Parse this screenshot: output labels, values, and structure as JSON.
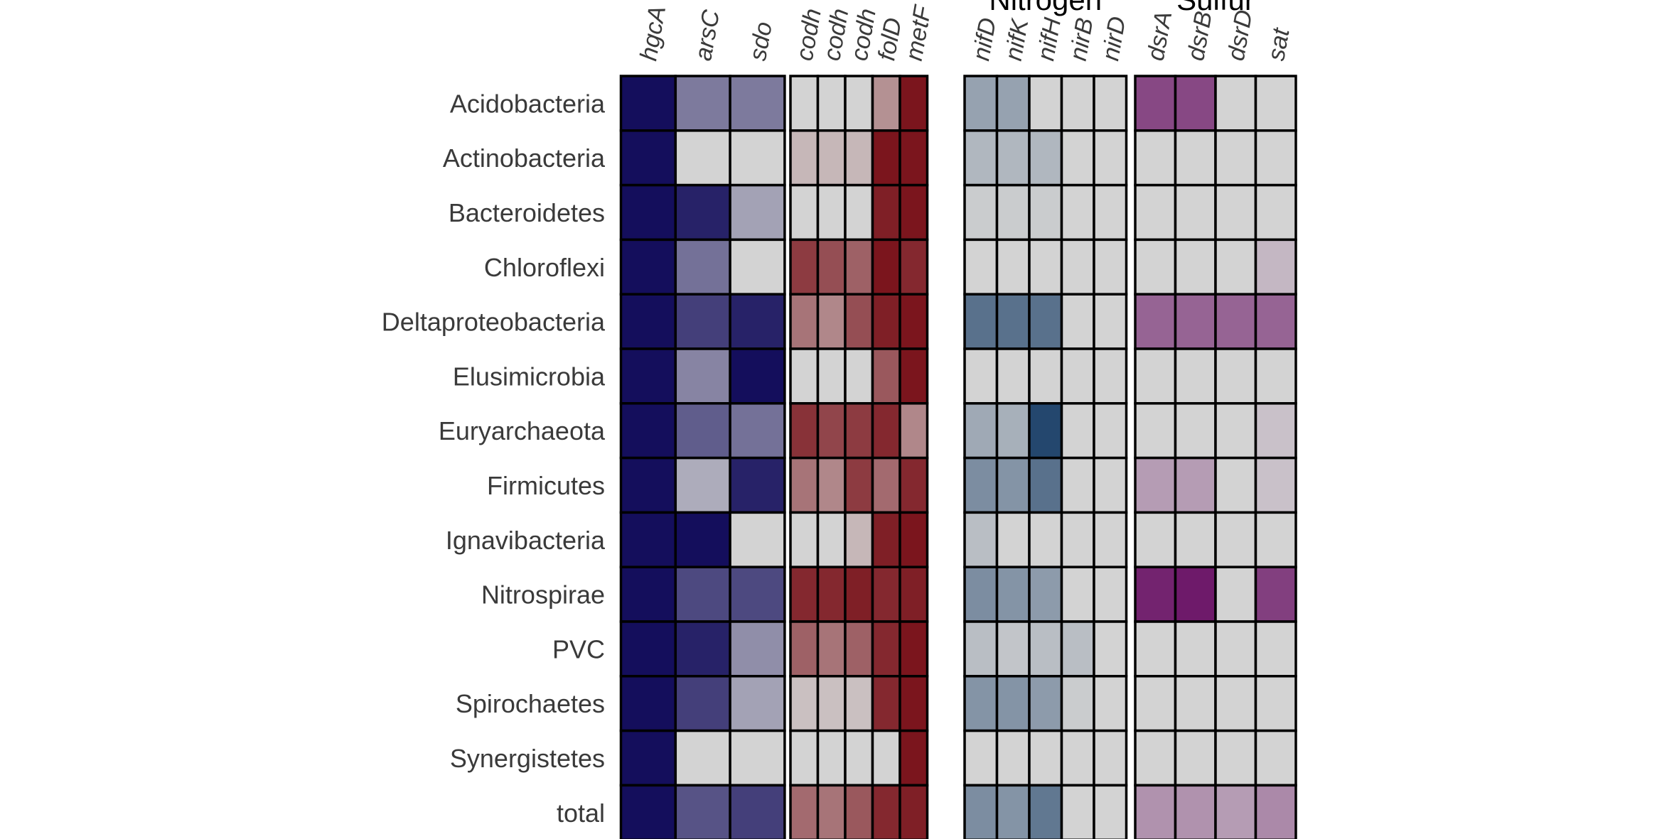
{
  "chart_data": {
    "type": "heatmap",
    "rows": [
      "Acidobacteria",
      "Actinobacteria",
      "Bacteroidetes",
      "Chloroflexi",
      "Deltaproteobacteria",
      "Elusimicrobia",
      "Euryarchaeota",
      "Firmicutes",
      "Ignavibacteria",
      "Nitrospirae",
      "PVC",
      "Spirochaetes",
      "Synergistetes",
      "total"
    ],
    "empty_color": "#d3d3d3",
    "groups": [
      {
        "label": "",
        "color": "#140e5c",
        "columns": [
          "hgcA",
          "arsC",
          "sdo"
        ],
        "values": [
          [
            1.0,
            0.45,
            0.45
          ],
          [
            1.0,
            0.0,
            0.0
          ],
          [
            1.0,
            0.9,
            0.25
          ],
          [
            1.0,
            0.5,
            0.0
          ],
          [
            1.0,
            0.75,
            0.9
          ],
          [
            1.0,
            0.4,
            1.0
          ],
          [
            1.0,
            0.6,
            0.5
          ],
          [
            1.0,
            0.2,
            0.9
          ],
          [
            1.0,
            1.0,
            0.0
          ],
          [
            1.0,
            0.7,
            0.7
          ],
          [
            1.0,
            0.9,
            0.35
          ],
          [
            1.0,
            0.75,
            0.25
          ],
          [
            1.0,
            0.0,
            0.0
          ],
          [
            1.0,
            0.65,
            0.75
          ]
        ]
      },
      {
        "label": "",
        "color": "#7b151d",
        "columns": [
          "codh",
          "codh",
          "codh",
          "folD",
          "metF"
        ],
        "values": [
          [
            0.0,
            0.0,
            0.0,
            0.35,
            1.0
          ],
          [
            0.15,
            0.15,
            0.15,
            1.0,
            1.0
          ],
          [
            0.0,
            0.0,
            0.0,
            0.95,
            1.0
          ],
          [
            0.8,
            0.7,
            0.6,
            1.0,
            0.9
          ],
          [
            0.5,
            0.4,
            0.7,
            0.95,
            1.0
          ],
          [
            0.0,
            0.0,
            0.0,
            0.65,
            1.0
          ],
          [
            0.85,
            0.75,
            0.8,
            0.9,
            0.4
          ],
          [
            0.5,
            0.4,
            0.8,
            0.55,
            0.9
          ],
          [
            0.0,
            0.0,
            0.15,
            0.95,
            1.0
          ],
          [
            0.9,
            0.9,
            0.95,
            0.9,
            0.95
          ],
          [
            0.6,
            0.5,
            0.6,
            0.9,
            1.0
          ],
          [
            0.1,
            0.1,
            0.1,
            0.9,
            1.0
          ],
          [
            0.0,
            0.0,
            0.0,
            0.0,
            1.0
          ],
          [
            0.55,
            0.5,
            0.65,
            0.9,
            0.95
          ]
        ]
      },
      {
        "label": "Nitrogen",
        "color": "#24476e",
        "columns": [
          "nifD",
          "nifK",
          "nifH",
          "nirB",
          "nirD"
        ],
        "values": [
          [
            0.35,
            0.35,
            0.0,
            0.0,
            0.0
          ],
          [
            0.2,
            0.2,
            0.2,
            0.0,
            0.0
          ],
          [
            0.05,
            0.05,
            0.05,
            0.0,
            0.0
          ],
          [
            0.0,
            0.0,
            0.0,
            0.0,
            0.0
          ],
          [
            0.7,
            0.7,
            0.7,
            0.0,
            0.0
          ],
          [
            0.0,
            0.0,
            0.0,
            0.0,
            0.0
          ],
          [
            0.3,
            0.25,
            1.0,
            0.0,
            0.0
          ],
          [
            0.5,
            0.45,
            0.7,
            0.0,
            0.0
          ],
          [
            0.15,
            0.0,
            0.0,
            0.0,
            0.0
          ],
          [
            0.5,
            0.45,
            0.4,
            0.0,
            0.0
          ],
          [
            0.15,
            0.1,
            0.15,
            0.15,
            0.0
          ],
          [
            0.45,
            0.45,
            0.4,
            0.05,
            0.0
          ],
          [
            0.0,
            0.0,
            0.0,
            0.0,
            0.0
          ],
          [
            0.5,
            0.45,
            0.65,
            0.0,
            0.0
          ]
        ]
      },
      {
        "label": "Sulfur",
        "color": "#6e1a6a",
        "columns": [
          "dsrA",
          "dsrB",
          "dsrD",
          "sat"
        ],
        "values": [
          [
            0.75,
            0.75,
            0.0,
            0.0
          ],
          [
            0.0,
            0.0,
            0.0,
            0.0
          ],
          [
            0.0,
            0.0,
            0.0,
            0.0
          ],
          [
            0.0,
            0.0,
            0.0,
            0.15
          ],
          [
            0.6,
            0.6,
            0.6,
            0.6
          ],
          [
            0.0,
            0.0,
            0.0,
            0.0
          ],
          [
            0.0,
            0.0,
            0.0,
            0.1
          ],
          [
            0.3,
            0.3,
            0.0,
            0.1
          ],
          [
            0.0,
            0.0,
            0.0,
            0.0
          ],
          [
            0.95,
            1.0,
            0.0,
            0.8
          ],
          [
            0.0,
            0.0,
            0.0,
            0.0
          ],
          [
            0.0,
            0.0,
            0.0,
            0.0
          ],
          [
            0.0,
            0.0,
            0.0,
            0.0
          ],
          [
            0.35,
            0.35,
            0.3,
            0.4
          ]
        ]
      }
    ]
  }
}
